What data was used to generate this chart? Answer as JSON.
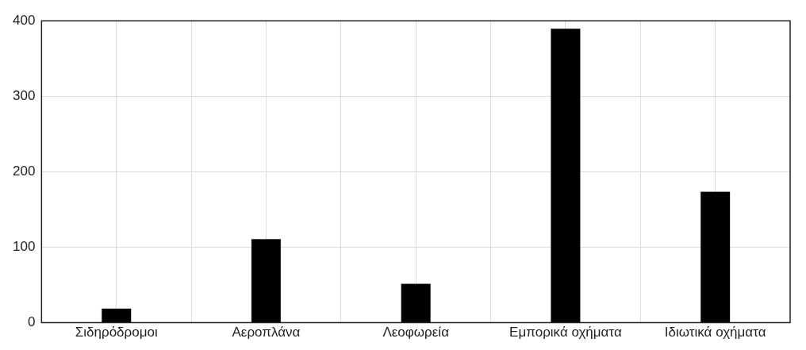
{
  "chart_data": {
    "type": "bar",
    "categories": [
      "Σιδηρόδρομοι",
      "Αεροπλάνα",
      "Λεοφωρεία",
      "Εμπορικά οχήματα",
      "Ιδιωτικά οχήματα"
    ],
    "values": [
      19,
      111,
      52,
      390,
      174
    ],
    "color": "#000000",
    "ylim": [
      0,
      400
    ],
    "yticks": [
      0,
      100,
      200,
      300,
      400
    ],
    "grid": true
  }
}
